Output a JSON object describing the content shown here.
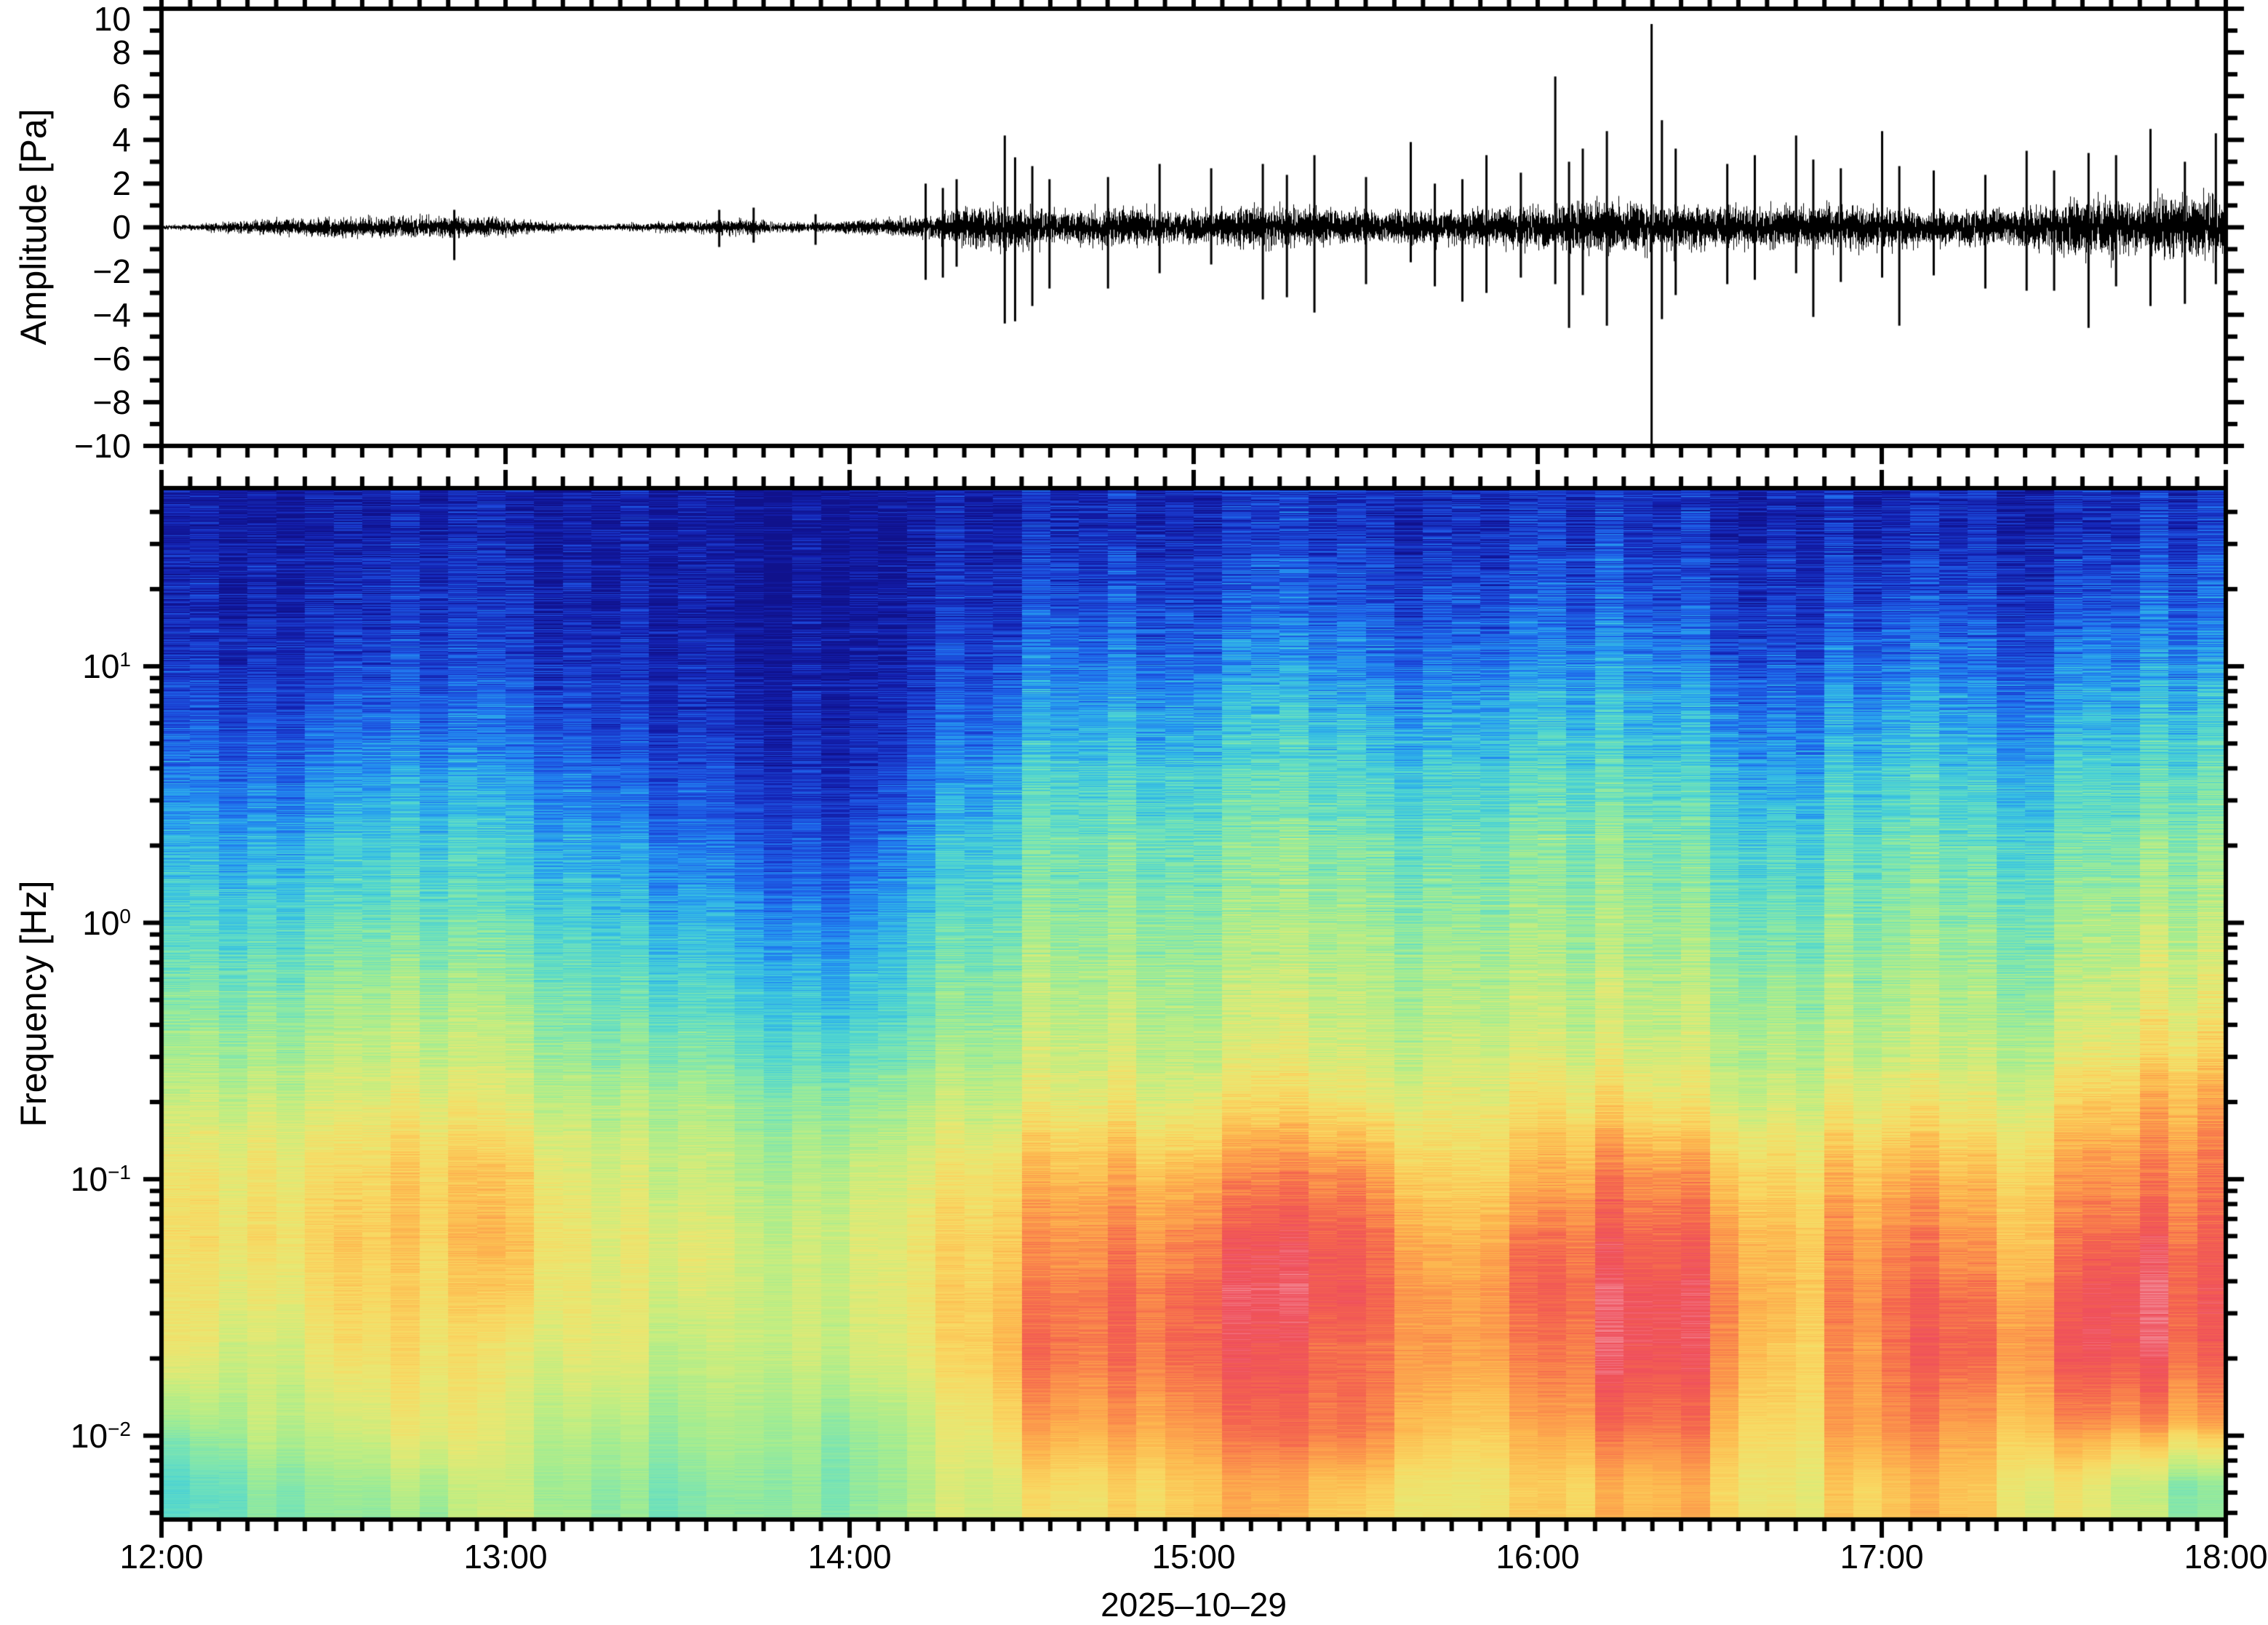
{
  "figure": {
    "background": "#ffffff",
    "frame_color": "#000000",
    "trace_color": "#000000"
  },
  "top_panel": {
    "ylabel": "Amplitude [Pa]",
    "ylim": [
      -10,
      10
    ],
    "yticks": [
      "10",
      "8",
      "6",
      "4",
      "2",
      "0",
      "−2",
      "−4",
      "−6",
      "−8",
      "−10"
    ]
  },
  "bottom_panel": {
    "ylabel": "Frequency [Hz]",
    "y_scale": "log",
    "yticks": [
      {
        "mant": "10",
        "exp": "1"
      },
      {
        "mant": "10",
        "exp": "0"
      },
      {
        "mant": "10",
        "exp": "−1"
      },
      {
        "mant": "10",
        "exp": "−2"
      }
    ]
  },
  "x_axis": {
    "ticks": [
      "12:00",
      "13:00",
      "14:00",
      "15:00",
      "16:00",
      "17:00",
      "18:00"
    ],
    "minor_step_minutes": 5,
    "date": "2025–10–29"
  },
  "chart_data": [
    {
      "type": "line",
      "name": "acoustic-pressure-waveform",
      "title": "",
      "xlabel": "2025-10-29 (time of day)",
      "ylabel": "Amplitude [Pa]",
      "color": "#000000",
      "xlim_hours": [
        12,
        18
      ],
      "ylim": [
        -10,
        10
      ],
      "envelope_t0": 12.0,
      "envelope_dt": 0.1,
      "envelope_pa": [
        0.1,
        0.15,
        0.28,
        0.38,
        0.42,
        0.46,
        0.5,
        0.55,
        0.52,
        0.5,
        0.42,
        0.28,
        0.18,
        0.14,
        0.22,
        0.28,
        0.32,
        0.38,
        0.25,
        0.22,
        0.32,
        0.4,
        0.55,
        0.8,
        1.05,
        1.0,
        0.8,
        0.85,
        0.95,
        0.85,
        0.8,
        0.9,
        1.05,
        0.95,
        0.85,
        0.82,
        0.88,
        0.78,
        0.85,
        0.95,
        1.05,
        1.15,
        1.25,
        1.2,
        1.1,
        1.0,
        1.05,
        1.0,
        1.05,
        1.0,
        1.05,
        0.9,
        0.8,
        0.9,
        1.0,
        1.2,
        1.5,
        1.4,
        1.35,
        1.45,
        1.55
      ],
      "spikes_t_up_down": [
        [
          12.85,
          0.8,
          -1.5
        ],
        [
          13.62,
          0.8,
          -0.9
        ],
        [
          13.72,
          0.9,
          -0.7
        ],
        [
          13.9,
          0.6,
          -0.8
        ],
        [
          14.22,
          2.0,
          -2.4
        ],
        [
          14.27,
          1.8,
          -2.3
        ],
        [
          14.31,
          2.2,
          -1.8
        ],
        [
          14.45,
          4.2,
          -4.4
        ],
        [
          14.48,
          3.2,
          -4.3
        ],
        [
          14.53,
          2.8,
          -3.6
        ],
        [
          14.58,
          2.2,
          -2.8
        ],
        [
          14.75,
          2.3,
          -2.8
        ],
        [
          14.9,
          2.9,
          -2.1
        ],
        [
          15.05,
          2.7,
          -1.7
        ],
        [
          15.2,
          2.9,
          -3.3
        ],
        [
          15.27,
          2.4,
          -3.2
        ],
        [
          15.35,
          3.3,
          -3.9
        ],
        [
          15.5,
          2.3,
          -2.6
        ],
        [
          15.63,
          3.9,
          -1.6
        ],
        [
          15.7,
          2.0,
          -2.7
        ],
        [
          15.78,
          2.2,
          -3.4
        ],
        [
          15.85,
          3.3,
          -3.0
        ],
        [
          15.95,
          2.5,
          -2.3
        ],
        [
          16.05,
          6.9,
          -2.6
        ],
        [
          16.09,
          3.0,
          -4.6
        ],
        [
          16.13,
          3.6,
          -3.1
        ],
        [
          16.2,
          4.4,
          -4.5
        ],
        [
          16.33,
          9.3,
          -10.2
        ],
        [
          16.36,
          4.9,
          -4.2
        ],
        [
          16.4,
          3.6,
          -3.1
        ],
        [
          16.55,
          2.9,
          -2.6
        ],
        [
          16.63,
          3.3,
          -2.4
        ],
        [
          16.75,
          4.2,
          -2.1
        ],
        [
          16.8,
          3.1,
          -4.1
        ],
        [
          16.88,
          2.7,
          -2.5
        ],
        [
          17.0,
          4.4,
          -2.3
        ],
        [
          17.05,
          2.8,
          -4.5
        ],
        [
          17.15,
          2.6,
          -2.2
        ],
        [
          17.3,
          2.4,
          -2.8
        ],
        [
          17.42,
          3.5,
          -2.9
        ],
        [
          17.5,
          2.6,
          -2.9
        ],
        [
          17.6,
          3.4,
          -4.6
        ],
        [
          17.68,
          3.3,
          -2.7
        ],
        [
          17.78,
          4.5,
          -3.6
        ],
        [
          17.88,
          3.0,
          -3.5
        ],
        [
          17.97,
          4.3,
          -2.6
        ]
      ]
    },
    {
      "type": "heatmap",
      "name": "infrasound-spectrogram",
      "xlabel": "2025-10-29 (time of day)",
      "ylabel": "Frequency [Hz]",
      "xlim_hours": [
        12,
        18
      ],
      "f_min_hz": 0.0047,
      "f_max_hz": 49.5,
      "y_scale": "log",
      "grid_time_step_minutes": 10,
      "grid_rows_span_log10f_top_to_bottom": [
        1.695,
        -2.327
      ],
      "colormap_stops": [
        [
          0.0,
          "#10128c"
        ],
        [
          0.06,
          "#131fae"
        ],
        [
          0.12,
          "#1b3fd1"
        ],
        [
          0.18,
          "#1e63e9"
        ],
        [
          0.24,
          "#2492f0"
        ],
        [
          0.3,
          "#35bde4"
        ],
        [
          0.36,
          "#52d6cf"
        ],
        [
          0.42,
          "#79e4b4"
        ],
        [
          0.48,
          "#a2ec92"
        ],
        [
          0.54,
          "#c8ed7f"
        ],
        [
          0.6,
          "#e8e873"
        ],
        [
          0.66,
          "#f9d862"
        ],
        [
          0.72,
          "#fdb84f"
        ],
        [
          0.78,
          "#fb8e4b"
        ],
        [
          0.83,
          "#f4644f"
        ],
        [
          0.88,
          "#ef4f5c"
        ],
        [
          0.93,
          "#f4929c"
        ],
        [
          1.0,
          "#fdeff0"
        ]
      ],
      "values_0_100": [
        [
          3,
          3,
          4,
          4,
          5,
          5,
          4,
          4,
          3,
          2,
          2,
          2,
          3,
          4,
          6,
          8,
          7,
          7,
          8,
          10,
          8,
          7,
          8,
          8,
          10,
          9,
          8,
          6,
          5,
          7,
          8,
          8,
          6,
          8,
          9,
          10
        ],
        [
          5,
          5,
          6,
          7,
          8,
          8,
          7,
          6,
          4,
          3,
          3,
          2,
          4,
          6,
          9,
          13,
          12,
          12,
          13,
          15,
          13,
          12,
          12,
          13,
          16,
          15,
          13,
          10,
          8,
          12,
          13,
          12,
          10,
          13,
          15,
          16
        ],
        [
          8,
          8,
          10,
          11,
          12,
          12,
          11,
          9,
          6,
          5,
          4,
          3,
          6,
          9,
          14,
          20,
          18,
          18,
          20,
          23,
          20,
          18,
          18,
          20,
          24,
          22,
          20,
          15,
          12,
          18,
          20,
          18,
          15,
          20,
          22,
          24
        ],
        [
          13,
          13,
          15,
          17,
          18,
          18,
          16,
          13,
          9,
          8,
          7,
          5,
          9,
          14,
          20,
          28,
          26,
          26,
          28,
          31,
          28,
          26,
          26,
          28,
          32,
          30,
          28,
          22,
          18,
          26,
          28,
          26,
          22,
          28,
          30,
          32
        ],
        [
          20,
          20,
          22,
          25,
          26,
          26,
          24,
          20,
          15,
          13,
          12,
          8,
          14,
          20,
          28,
          36,
          34,
          34,
          36,
          38,
          36,
          34,
          34,
          36,
          40,
          38,
          36,
          30,
          25,
          34,
          36,
          34,
          30,
          36,
          38,
          40
        ],
        [
          27,
          27,
          30,
          32,
          33,
          33,
          31,
          27,
          21,
          19,
          18,
          12,
          20,
          27,
          35,
          42,
          40,
          40,
          42,
          44,
          42,
          40,
          40,
          42,
          45,
          44,
          42,
          36,
          32,
          40,
          42,
          40,
          36,
          42,
          44,
          46
        ],
        [
          34,
          34,
          36,
          38,
          39,
          39,
          37,
          33,
          28,
          26,
          25,
          18,
          27,
          33,
          40,
          46,
          45,
          45,
          46,
          48,
          46,
          45,
          45,
          46,
          49,
          48,
          46,
          42,
          38,
          45,
          46,
          45,
          42,
          47,
          49,
          51
        ],
        [
          40,
          40,
          42,
          44,
          45,
          45,
          43,
          39,
          35,
          33,
          32,
          26,
          34,
          39,
          45,
          50,
          49,
          49,
          50,
          52,
          50,
          49,
          49,
          50,
          52,
          52,
          50,
          46,
          43,
          49,
          50,
          49,
          46,
          52,
          55,
          57
        ],
        [
          46,
          46,
          48,
          50,
          51,
          51,
          49,
          45,
          42,
          40,
          39,
          34,
          41,
          45,
          50,
          54,
          53,
          53,
          54,
          56,
          54,
          53,
          53,
          54,
          56,
          56,
          54,
          51,
          48,
          53,
          54,
          53,
          51,
          58,
          62,
          64
        ],
        [
          52,
          53,
          55,
          57,
          58,
          58,
          56,
          52,
          49,
          47,
          46,
          42,
          48,
          52,
          56,
          60,
          59,
          59,
          62,
          64,
          62,
          60,
          58,
          60,
          63,
          64,
          62,
          57,
          54,
          60,
          62,
          60,
          57,
          66,
          70,
          72
        ],
        [
          58,
          60,
          62,
          64,
          66,
          66,
          63,
          58,
          55,
          53,
          52,
          48,
          55,
          58,
          64,
          70,
          68,
          68,
          72,
          75,
          73,
          70,
          66,
          70,
          74,
          76,
          74,
          66,
          60,
          70,
          73,
          70,
          66,
          76,
          79,
          80
        ],
        [
          62,
          64,
          66,
          68,
          70,
          70,
          67,
          62,
          59,
          57,
          56,
          52,
          60,
          63,
          70,
          78,
          76,
          76,
          80,
          83,
          81,
          78,
          70,
          77,
          82,
          85,
          83,
          74,
          66,
          78,
          81,
          78,
          72,
          82,
          84,
          85
        ],
        [
          60,
          62,
          64,
          66,
          68,
          68,
          65,
          61,
          58,
          56,
          56,
          52,
          60,
          64,
          72,
          82,
          80,
          80,
          84,
          87,
          85,
          82,
          72,
          80,
          86,
          91,
          88,
          78,
          68,
          82,
          85,
          82,
          75,
          86,
          88,
          88
        ],
        [
          56,
          58,
          60,
          62,
          64,
          64,
          61,
          58,
          55,
          54,
          54,
          50,
          58,
          62,
          70,
          80,
          78,
          78,
          82,
          85,
          83,
          80,
          70,
          78,
          84,
          90,
          86,
          76,
          66,
          80,
          83,
          80,
          73,
          84,
          86,
          85
        ],
        [
          50,
          52,
          54,
          56,
          58,
          58,
          56,
          53,
          50,
          49,
          49,
          46,
          54,
          58,
          65,
          74,
          72,
          72,
          76,
          79,
          77,
          74,
          65,
          72,
          78,
          83,
          80,
          70,
          62,
          74,
          77,
          74,
          68,
          78,
          80,
          78
        ],
        [
          36,
          44,
          48,
          50,
          52,
          52,
          50,
          48,
          46,
          45,
          45,
          42,
          50,
          54,
          60,
          66,
          64,
          64,
          68,
          70,
          68,
          66,
          58,
          64,
          68,
          72,
          70,
          62,
          56,
          66,
          68,
          66,
          60,
          60,
          52,
          46
        ]
      ]
    }
  ]
}
